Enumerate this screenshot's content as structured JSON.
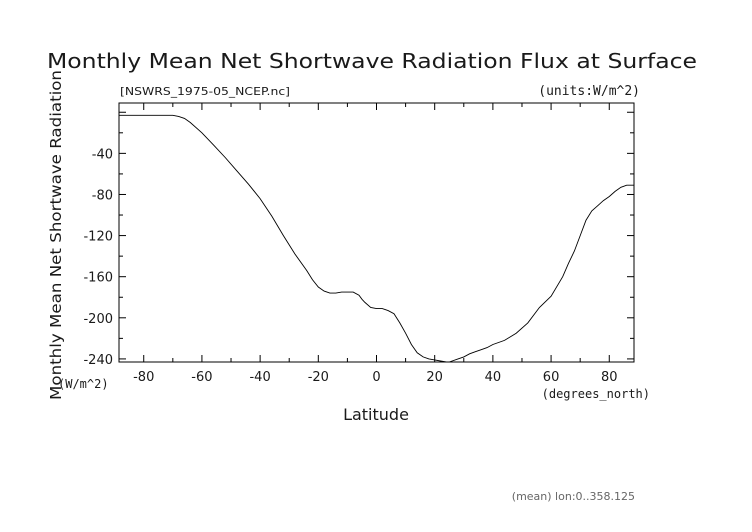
{
  "chart_data": {
    "type": "line",
    "title": "Monthly Mean Net Shortwave Radiation Flux at Surface",
    "subtitle_left": "[NSWRS_1975-05_NCEP.nc]",
    "subtitle_right": "(units:W/m^2)",
    "xlabel": "Latitude",
    "xunit": "(degrees_north)",
    "ylabel": "Monthly Mean Net Shortwave Radiation",
    "yunit": "(W/m^2)",
    "footnote": "(mean) lon:0..358.125",
    "xlim": [
      -88.5,
      88.5
    ],
    "ylim": [
      -243,
      9
    ],
    "xticks": [
      -80,
      -60,
      -40,
      -20,
      0,
      20,
      40,
      60,
      80
    ],
    "yticks": [
      -40,
      -80,
      -120,
      -160,
      -200,
      -240
    ],
    "grid": false,
    "line_color": "#000000",
    "series": [
      {
        "x": [
          -88.5,
          -80,
          -75,
          -72,
          -70,
          -68,
          -66,
          -64,
          -60,
          -56,
          -52,
          -48,
          -44,
          -40,
          -36,
          -32,
          -28,
          -24,
          -22,
          -20,
          -18,
          -16,
          -14,
          -12,
          -10,
          -8,
          -6,
          -5,
          -4,
          -2,
          0,
          2,
          4,
          6,
          8,
          10,
          12,
          14,
          16,
          18,
          20,
          22,
          24,
          25,
          26,
          28,
          30,
          32,
          34,
          36,
          38,
          40,
          44,
          48,
          52,
          56,
          60,
          64,
          66,
          68,
          70,
          72,
          74,
          76,
          78,
          80,
          82,
          84,
          86,
          88.5
        ],
        "y": [
          -3,
          -3,
          -3,
          -3,
          -3,
          -4,
          -6,
          -10,
          -20,
          -32,
          -44,
          -57,
          -70,
          -84,
          -101,
          -120,
          -138,
          -154,
          -163,
          -170,
          -174,
          -176,
          -176,
          -175,
          -175,
          -175,
          -178,
          -182,
          -185,
          -190,
          -191,
          -191,
          -193,
          -196,
          -205,
          -215,
          -226,
          -234,
          -238,
          -240,
          -241,
          -242,
          -243,
          -243,
          -242,
          -240,
          -238,
          -235,
          -233,
          -231,
          -229,
          -226,
          -222,
          -215,
          -205,
          -190,
          -179,
          -160,
          -147,
          -135,
          -120,
          -105,
          -96,
          -91,
          -86,
          -82,
          -77,
          -73,
          -71,
          -71
        ]
      }
    ]
  }
}
